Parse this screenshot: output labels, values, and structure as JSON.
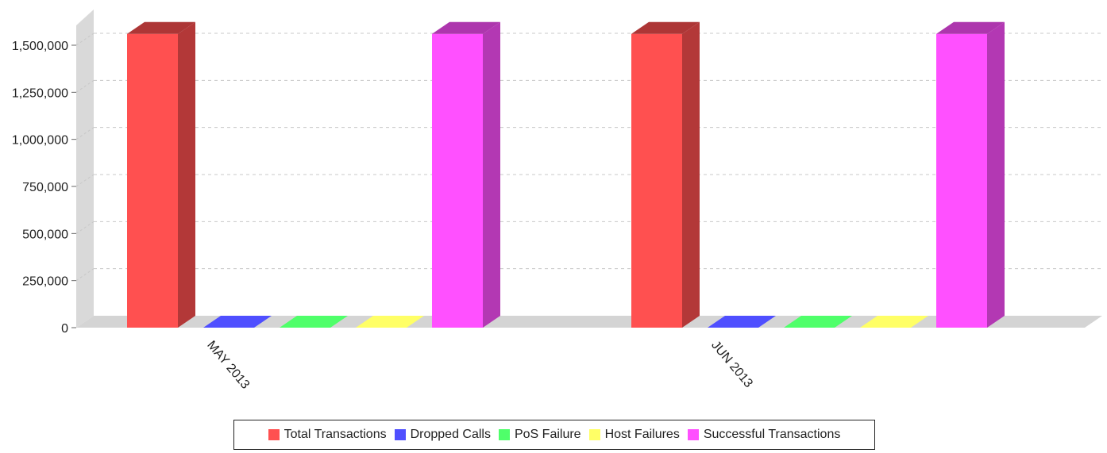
{
  "chart_data": {
    "type": "bar",
    "style": "3d",
    "categories": [
      "MAY 2013",
      "JUN 2013"
    ],
    "series": [
      {
        "name": "Total Transactions",
        "color": "#ff5050",
        "values": [
          1560000,
          1560000
        ]
      },
      {
        "name": "Dropped Calls",
        "color": "#4f4fff",
        "values": [
          0,
          0
        ]
      },
      {
        "name": "PoS Failure",
        "color": "#4fff6a",
        "values": [
          0,
          0
        ]
      },
      {
        "name": "Host Failures",
        "color": "#ffff66",
        "values": [
          0,
          0
        ]
      },
      {
        "name": "Successful Transactions",
        "color": "#ff50ff",
        "values": [
          1560000,
          1560000
        ]
      }
    ],
    "y_ticks": [
      "0",
      "250,000",
      "500,000",
      "750,000",
      "1,000,000",
      "1,250,000",
      "1,500,000"
    ],
    "ylim": [
      0,
      1500000
    ],
    "grid": true,
    "legend_position": "bottom"
  }
}
